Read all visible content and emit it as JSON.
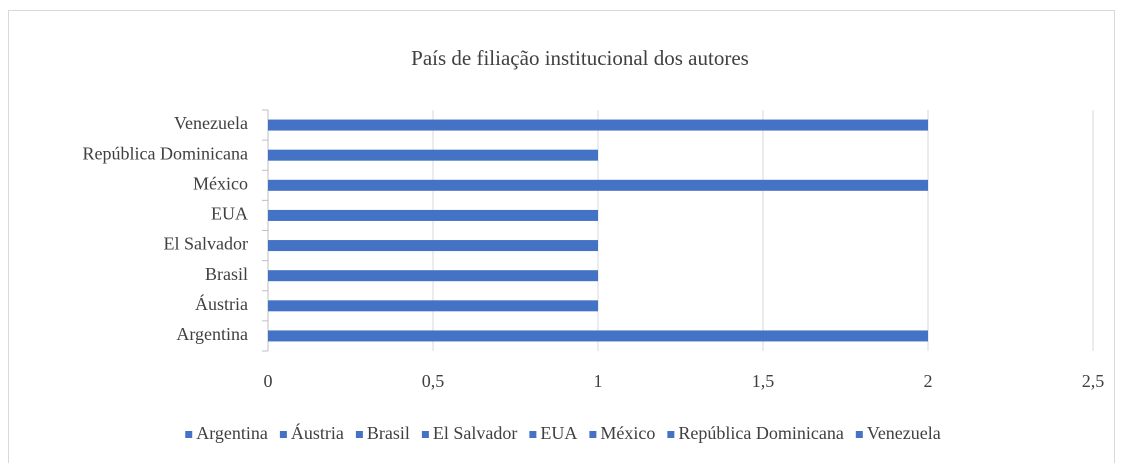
{
  "chart_data": {
    "type": "bar",
    "orientation": "horizontal",
    "title": "País de filiação institucional dos autores",
    "categories": [
      "Argentina",
      "Áustria",
      "Brasil",
      "El Salvador",
      "EUA",
      "México",
      "República Dominicana",
      "Venezuela"
    ],
    "values": [
      2,
      1,
      1,
      1,
      1,
      2,
      1,
      2
    ],
    "color": "#4472c4",
    "xlim": [
      0,
      2.5
    ],
    "xticks": [
      0,
      {
        "value": 0.5,
        "label": "0,5"
      },
      1,
      {
        "value": 1.5,
        "label": "1,5"
      },
      2,
      {
        "value": 2.5,
        "label": "2,5"
      }
    ],
    "grid": true,
    "legend": "bottom"
  }
}
